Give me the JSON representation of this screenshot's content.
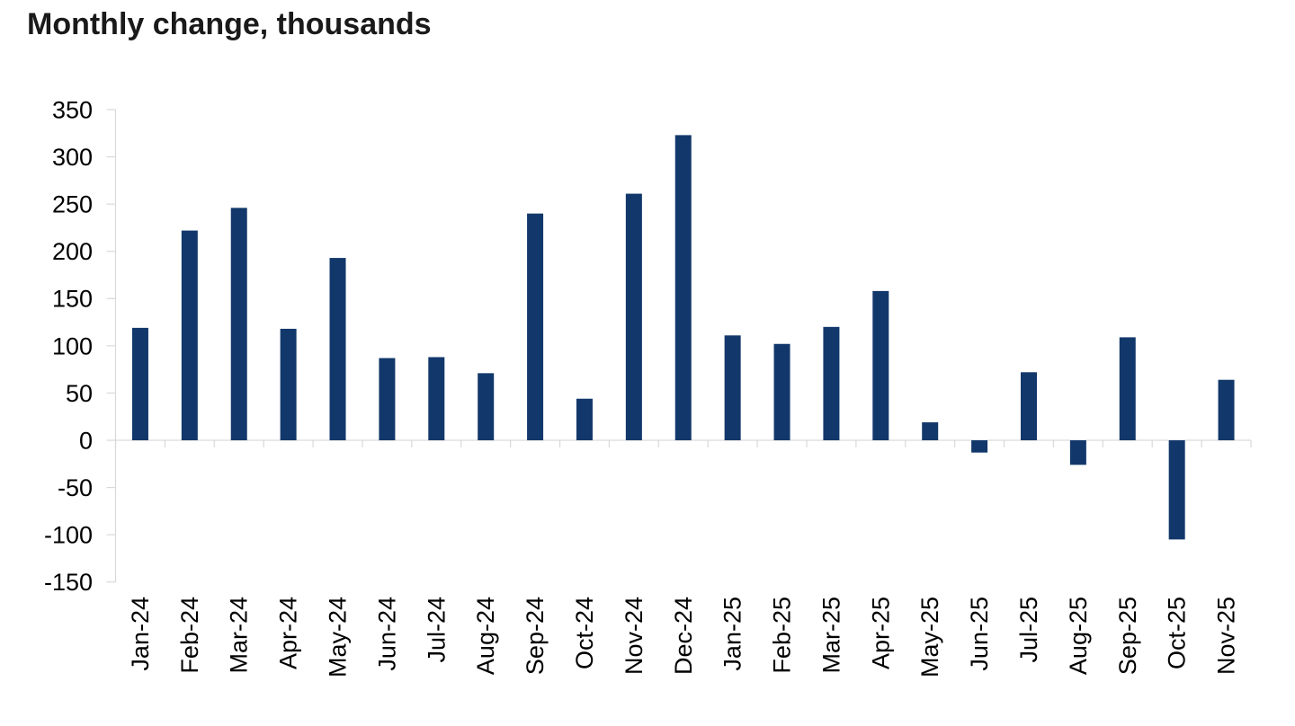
{
  "chart_data": {
    "type": "bar",
    "title": "Monthly change, thousands",
    "xlabel": "",
    "ylabel": "",
    "units": "thousands",
    "categories": [
      "Jan-24",
      "Feb-24",
      "Mar-24",
      "Apr-24",
      "May-24",
      "Jun-24",
      "Jul-24",
      "Aug-24",
      "Sep-24",
      "Oct-24",
      "Nov-24",
      "Dec-24",
      "Jan-25",
      "Feb-25",
      "Mar-25",
      "Apr-25",
      "May-25",
      "Jun-25",
      "Jul-25",
      "Aug-25",
      "Sep-25",
      "Oct-25",
      "Nov-25"
    ],
    "values": [
      119,
      222,
      246,
      118,
      193,
      87,
      88,
      71,
      240,
      44,
      261,
      323,
      111,
      102,
      120,
      158,
      19,
      -13,
      72,
      -26,
      109,
      -105,
      64
    ],
    "ylim": [
      -150,
      350
    ],
    "ytick_step": 50,
    "ytick_labels": [
      "350",
      "300",
      "250",
      "200",
      "150",
      "100",
      "50",
      "0",
      "-50",
      "-100",
      "-150"
    ],
    "grid": false,
    "legend": false,
    "bar_color": "#12386b",
    "axis_color": "#d9d9d9",
    "label_color": "#000000",
    "title_color": "#1a1a1a"
  }
}
